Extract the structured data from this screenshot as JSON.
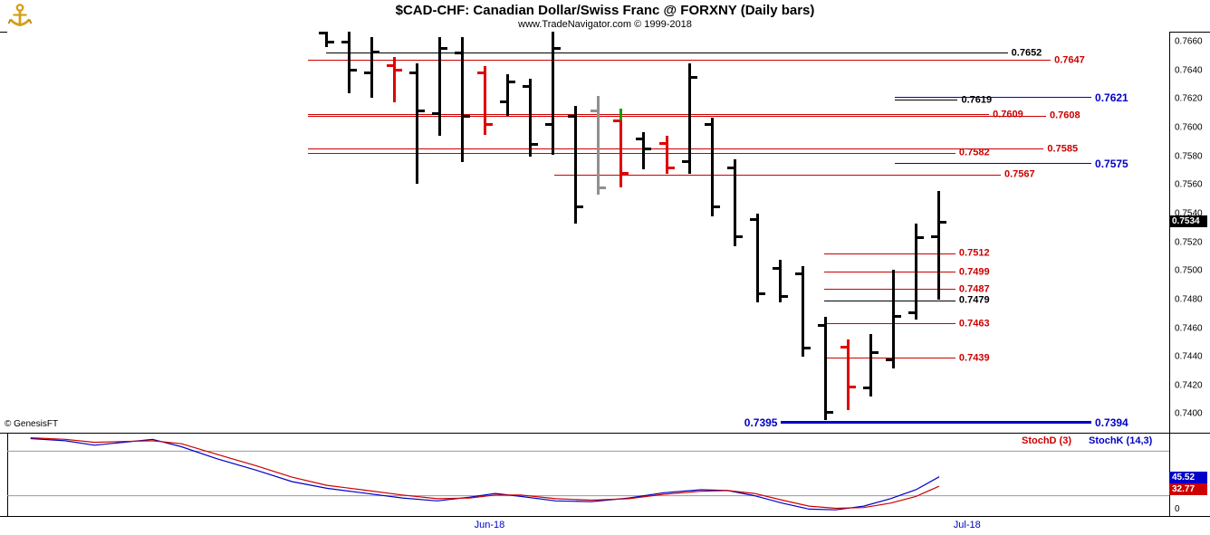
{
  "header": {
    "title": "$CAD-CHF:  Canadian Dollar/Swiss Franc @ FORXNY  (Daily bars)",
    "subtitle": "www.TradeNavigator.com © 1999-2018"
  },
  "watermark": "© GenesisFT",
  "colors": {
    "up": "#000000",
    "down": "#e00000",
    "neutral": "#909090",
    "green": "#00a000",
    "red": "#cc0000",
    "blue": "#0000c8",
    "badge_bg": "#000000",
    "badge_text": "#ffffff"
  },
  "chart_data": [
    {
      "type": "ohlc-bar",
      "title": "$CAD-CHF Canadian Dollar/Swiss Franc @ FORXNY Daily bars",
      "y_axis": {
        "max": 0.7667,
        "min": 0.7387,
        "ticks": [
          "0.7660",
          "0.7640",
          "0.7620",
          "0.7600",
          "0.7580",
          "0.7560",
          "0.7540",
          "0.7520",
          "0.7500",
          "0.7480",
          "0.7460",
          "0.7440",
          "0.7420",
          "0.7400"
        ]
      },
      "x_axis": {
        "labels": [
          {
            "text": "Jun-18",
            "pos": 0.415
          },
          {
            "text": "Jul-18",
            "pos": 0.826
          }
        ]
      },
      "last_price": "0.7534",
      "bars_layout": {
        "x_start": 352,
        "x_step": 25.07,
        "width": 3,
        "tick": 7
      },
      "bars": [
        {
          "h": 0.7672,
          "l": 0.7656,
          "o": 0.7666,
          "c": 0.766,
          "t": "u"
        },
        {
          "h": 0.7672,
          "l": 0.7624,
          "o": 0.766,
          "c": 0.764,
          "t": "u"
        },
        {
          "h": 0.7663,
          "l": 0.7621,
          "o": 0.7638,
          "c": 0.7653,
          "t": "u"
        },
        {
          "h": 0.7649,
          "l": 0.7618,
          "o": 0.7643,
          "c": 0.764,
          "t": "d"
        },
        {
          "h": 0.7645,
          "l": 0.7561,
          "o": 0.7638,
          "c": 0.7612,
          "t": "u"
        },
        {
          "h": 0.7663,
          "l": 0.7594,
          "o": 0.761,
          "c": 0.7655,
          "t": "u"
        },
        {
          "h": 0.7663,
          "l": 0.7576,
          "o": 0.7652,
          "c": 0.7608,
          "t": "u"
        },
        {
          "h": 0.7643,
          "l": 0.7595,
          "o": 0.7638,
          "c": 0.7602,
          "t": "d"
        },
        {
          "h": 0.7637,
          "l": 0.7608,
          "o": 0.7618,
          "c": 0.7632,
          "t": "u"
        },
        {
          "h": 0.7634,
          "l": 0.758,
          "o": 0.7629,
          "c": 0.7588,
          "t": "u"
        },
        {
          "h": 0.767,
          "l": 0.7581,
          "o": 0.7602,
          "c": 0.7655,
          "t": "u"
        },
        {
          "h": 0.7615,
          "l": 0.7533,
          "o": 0.7608,
          "c": 0.7545,
          "t": "u"
        },
        {
          "h": 0.7622,
          "l": 0.7553,
          "o": 0.7612,
          "c": 0.7558,
          "t": "n"
        },
        {
          "h": 0.7613,
          "l": 0.7558,
          "o": 0.7605,
          "c": 0.7568,
          "t": "d",
          "acc": [
            0.7613,
            0.7605
          ]
        },
        {
          "h": 0.7597,
          "l": 0.7571,
          "o": 0.7592,
          "c": 0.7585,
          "t": "u"
        },
        {
          "h": 0.7594,
          "l": 0.7568,
          "o": 0.7589,
          "c": 0.7572,
          "t": "d"
        },
        {
          "h": 0.7645,
          "l": 0.7568,
          "o": 0.7576,
          "c": 0.7635,
          "t": "u"
        },
        {
          "h": 0.7607,
          "l": 0.7538,
          "o": 0.7602,
          "c": 0.7545,
          "t": "u"
        },
        {
          "h": 0.7578,
          "l": 0.7517,
          "o": 0.7572,
          "c": 0.7524,
          "t": "u"
        },
        {
          "h": 0.754,
          "l": 0.7478,
          "o": 0.7536,
          "c": 0.7484,
          "t": "u"
        },
        {
          "h": 0.7508,
          "l": 0.7478,
          "o": 0.7502,
          "c": 0.7482,
          "t": "u"
        },
        {
          "h": 0.7503,
          "l": 0.744,
          "o": 0.7498,
          "c": 0.7446,
          "t": "u"
        },
        {
          "h": 0.7468,
          "l": 0.7396,
          "o": 0.7462,
          "c": 0.7401,
          "t": "u"
        },
        {
          "h": 0.7452,
          "l": 0.7403,
          "o": 0.7447,
          "c": 0.7419,
          "t": "d"
        },
        {
          "h": 0.7456,
          "l": 0.7412,
          "o": 0.7418,
          "c": 0.7443,
          "t": "u"
        },
        {
          "h": 0.7501,
          "l": 0.7432,
          "o": 0.7438,
          "c": 0.7468,
          "t": "u"
        },
        {
          "h": 0.7533,
          "l": 0.7466,
          "o": 0.7471,
          "c": 0.7523,
          "t": "u"
        },
        {
          "h": 0.7556,
          "l": 0.748,
          "o": 0.7524,
          "c": 0.7534,
          "t": "u"
        }
      ],
      "levels": [
        {
          "p": 0.7652,
          "c": "#000000",
          "x1": 0.274,
          "x2": 0.861,
          "labels": [
            {
              "t": "0.7652"
            }
          ]
        },
        {
          "p": 0.7647,
          "c": "#cc0000",
          "x1": 0.259,
          "x2": 0.898,
          "labels": [
            {
              "t": "0.7647"
            }
          ]
        },
        {
          "p": 0.7621,
          "c": "#0000c8",
          "x1": 0.764,
          "x2": 0.933,
          "labels": [
            {
              "t": "0.7621",
              "big": true
            }
          ]
        },
        {
          "p": 0.7619,
          "c": "#000000",
          "x1": 0.764,
          "x2": 0.818,
          "labels": [
            {
              "t": "0.7619"
            }
          ]
        },
        {
          "p": 0.7609,
          "c": "#cc0000",
          "x1": 0.259,
          "x2": 0.845,
          "labels": [
            {
              "t": "0.7609"
            }
          ]
        },
        {
          "p": 0.7608,
          "c": "#cc0000",
          "x1": 0.259,
          "x2": 0.894,
          "labels": [
            {
              "t": "0.7608"
            }
          ]
        },
        {
          "p": 0.7585,
          "c": "#cc0000",
          "x1": 0.259,
          "x2": 0.892,
          "labels": [
            {
              "t": "0.7585"
            }
          ]
        },
        {
          "p": 0.7582,
          "c": "#cc0000",
          "x1": 0.259,
          "x2": 0.816,
          "labels": [
            {
              "t": "0.7582"
            }
          ]
        },
        {
          "p": 0.7575,
          "c": "#0000c8",
          "x1": 0.764,
          "x2": 0.933,
          "labels": [
            {
              "t": "0.7575",
              "big": true
            }
          ]
        },
        {
          "p": 0.7567,
          "c": "#cc0000",
          "x1": 0.471,
          "x2": 0.855,
          "labels": [
            {
              "t": "0.7567"
            }
          ]
        },
        {
          "p": 0.7512,
          "c": "#cc0000",
          "x1": 0.703,
          "x2": 0.816,
          "labels": [
            {
              "t": "0.7512"
            }
          ]
        },
        {
          "p": 0.7499,
          "c": "#cc0000",
          "x1": 0.703,
          "x2": 0.816,
          "labels": [
            {
              "t": "0.7499"
            }
          ]
        },
        {
          "p": 0.7487,
          "c": "#cc0000",
          "x1": 0.703,
          "x2": 0.816,
          "labels": [
            {
              "t": "0.7487"
            }
          ]
        },
        {
          "p": 0.7479,
          "c": "#000000",
          "x1": 0.703,
          "x2": 0.816,
          "labels": [
            {
              "t": "0.7479"
            }
          ]
        },
        {
          "p": 0.7463,
          "c": "#cc0000",
          "x1": 0.703,
          "x2": 0.816,
          "labels": [
            {
              "t": "0.7463"
            }
          ]
        },
        {
          "p": 0.7439,
          "c": "#cc0000",
          "x1": 0.703,
          "x2": 0.816,
          "labels": [
            {
              "t": "0.7439"
            }
          ]
        },
        {
          "p": 0.7394,
          "c": "#0000c8",
          "thick": true,
          "x1": 0.666,
          "x2": 0.933,
          "labels": [
            {
              "t": "0.7395",
              "side": "left",
              "big": true
            },
            {
              "t": "0.7394",
              "big": true
            }
          ]
        }
      ]
    },
    {
      "type": "line",
      "title": "Stochastic",
      "ylim": [
        0,
        105
      ],
      "guides": [
        80,
        20
      ],
      "zero_label": "0",
      "series": [
        {
          "name": "StochK (14,3)",
          "color": "#0000c8",
          "last": "45.52",
          "points": [
            [
              0.02,
              97
            ],
            [
              0.05,
              94
            ],
            [
              0.075,
              88
            ],
            [
              0.1,
              92
            ],
            [
              0.125,
              96
            ],
            [
              0.15,
              86
            ],
            [
              0.18,
              70
            ],
            [
              0.215,
              54
            ],
            [
              0.245,
              39
            ],
            [
              0.275,
              30
            ],
            [
              0.305,
              24
            ],
            [
              0.34,
              17
            ],
            [
              0.37,
              13
            ],
            [
              0.398,
              18
            ],
            [
              0.42,
              23
            ],
            [
              0.442,
              19
            ],
            [
              0.472,
              13
            ],
            [
              0.503,
              12
            ],
            [
              0.535,
              17
            ],
            [
              0.565,
              24
            ],
            [
              0.597,
              28
            ],
            [
              0.62,
              27
            ],
            [
              0.643,
              20
            ],
            [
              0.667,
              10
            ],
            [
              0.69,
              2
            ],
            [
              0.713,
              1
            ],
            [
              0.737,
              6
            ],
            [
              0.76,
              16
            ],
            [
              0.782,
              28
            ],
            [
              0.802,
              45.52
            ]
          ]
        },
        {
          "name": "StochD (3)",
          "color": "#cc0000",
          "last": "32.77",
          "points": [
            [
              0.02,
              98
            ],
            [
              0.05,
              96
            ],
            [
              0.075,
              92
            ],
            [
              0.1,
              93
            ],
            [
              0.125,
              94
            ],
            [
              0.15,
              90
            ],
            [
              0.18,
              76
            ],
            [
              0.215,
              60
            ],
            [
              0.245,
              45
            ],
            [
              0.275,
              34
            ],
            [
              0.305,
              28
            ],
            [
              0.34,
              21
            ],
            [
              0.37,
              16
            ],
            [
              0.398,
              17
            ],
            [
              0.42,
              21
            ],
            [
              0.442,
              21
            ],
            [
              0.472,
              16
            ],
            [
              0.503,
              14
            ],
            [
              0.535,
              16
            ],
            [
              0.565,
              22
            ],
            [
              0.597,
              26
            ],
            [
              0.62,
              27
            ],
            [
              0.643,
              23
            ],
            [
              0.667,
              14
            ],
            [
              0.69,
              6
            ],
            [
              0.713,
              3
            ],
            [
              0.737,
              4
            ],
            [
              0.76,
              10
            ],
            [
              0.782,
              19
            ],
            [
              0.802,
              32.77
            ]
          ]
        }
      ]
    }
  ]
}
